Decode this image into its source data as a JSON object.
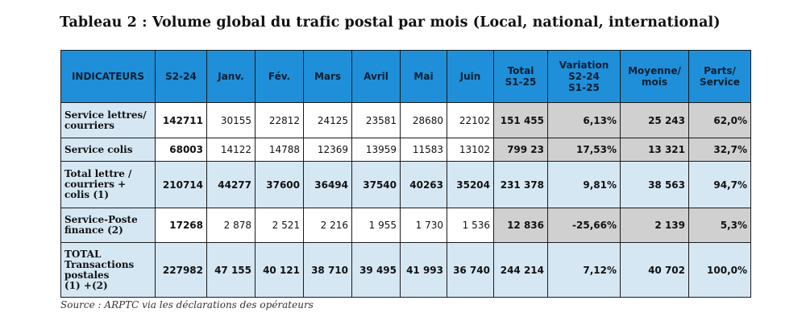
{
  "title": "Tableau 2 : Volume global du trafic postal par mois (Local, national, international)",
  "headers": [
    "INDICATEURS",
    "S2-24",
    "Janv.",
    "Fév.",
    "Mars",
    "Avril",
    "Mai",
    "Juin",
    "Total\nS1-25",
    "Variation\nS2-24\nS1-25",
    "Moyenne/\nmois",
    "Parts/\nService"
  ],
  "rows": [
    {
      "label": "Service lettres/\ncourriers",
      "cells": [
        "142711",
        "30155",
        "22812",
        "24125",
        "23581",
        "28680",
        "22102",
        "151 455",
        "6,13%",
        "25 243",
        "62,0%"
      ]
    },
    {
      "label": "Service colis",
      "cells": [
        "68003",
        "14122",
        "14788",
        "12369",
        "13959",
        "11583",
        "13102",
        "799 23",
        "17,53%",
        "13 321",
        "32,7%"
      ]
    },
    {
      "label": "Total lettre /\ncourriers +\ncolis (1)",
      "cells": [
        "210714",
        "44277",
        "37600",
        "36494",
        "37540",
        "40263",
        "35204",
        "231 378",
        "9,81%",
        "38 563",
        "94,7%"
      ]
    },
    {
      "label": "Service-Poste\nfinance (2)",
      "cells": [
        "17268",
        "2 878",
        "2 521",
        "2 216",
        "1 955",
        "1 730",
        "1 536",
        "12 836",
        "-25,66%",
        "2 139",
        "5,3%"
      ]
    },
    {
      "label": "TOTAL\nTransactions\npostales\n(1) +(2)",
      "cells": [
        "227982",
        "47 155",
        "40 121",
        "38 710",
        "39 495",
        "41 993",
        "36 740",
        "244 214",
        "7,12%",
        "40 702",
        "100,0%"
      ]
    }
  ],
  "source": "Source : ARPTC via les déclarations des opérateurs"
}
